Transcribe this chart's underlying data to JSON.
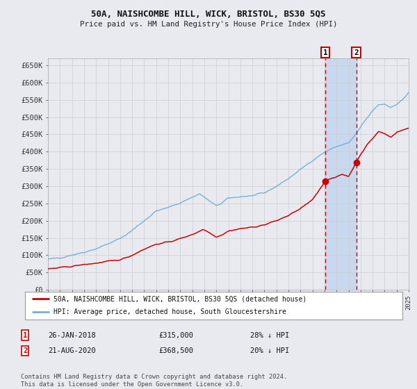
{
  "title": "50A, NAISHCOMBE HILL, WICK, BRISTOL, BS30 5QS",
  "subtitle": "Price paid vs. HM Land Registry's House Price Index (HPI)",
  "legend_red": "50A, NAISHCOMBE HILL, WICK, BRISTOL, BS30 5QS (detached house)",
  "legend_blue": "HPI: Average price, detached house, South Gloucestershire",
  "annotation1_date": "26-JAN-2018",
  "annotation1_price": "£315,000",
  "annotation1_hpi": "28% ↓ HPI",
  "annotation2_date": "21-AUG-2020",
  "annotation2_price": "£368,500",
  "annotation2_hpi": "20% ↓ HPI",
  "footnote": "Contains HM Land Registry data © Crown copyright and database right 2024.\nThis data is licensed under the Open Government Licence v3.0.",
  "sale1_year": 2018.07,
  "sale1_value": 315000,
  "sale2_year": 2020.64,
  "sale2_value": 368500,
  "ylim": [
    0,
    670000
  ],
  "yticks": [
    0,
    50000,
    100000,
    150000,
    200000,
    250000,
    300000,
    350000,
    400000,
    450000,
    500000,
    550000,
    600000,
    650000
  ],
  "bg_color": "#e8eaf0",
  "plot_bg": "#e8eaf0",
  "grid_color": "#cccccc",
  "red_color": "#cc0000",
  "blue_color": "#7aaed6",
  "shade_color": "#c8d8ee"
}
